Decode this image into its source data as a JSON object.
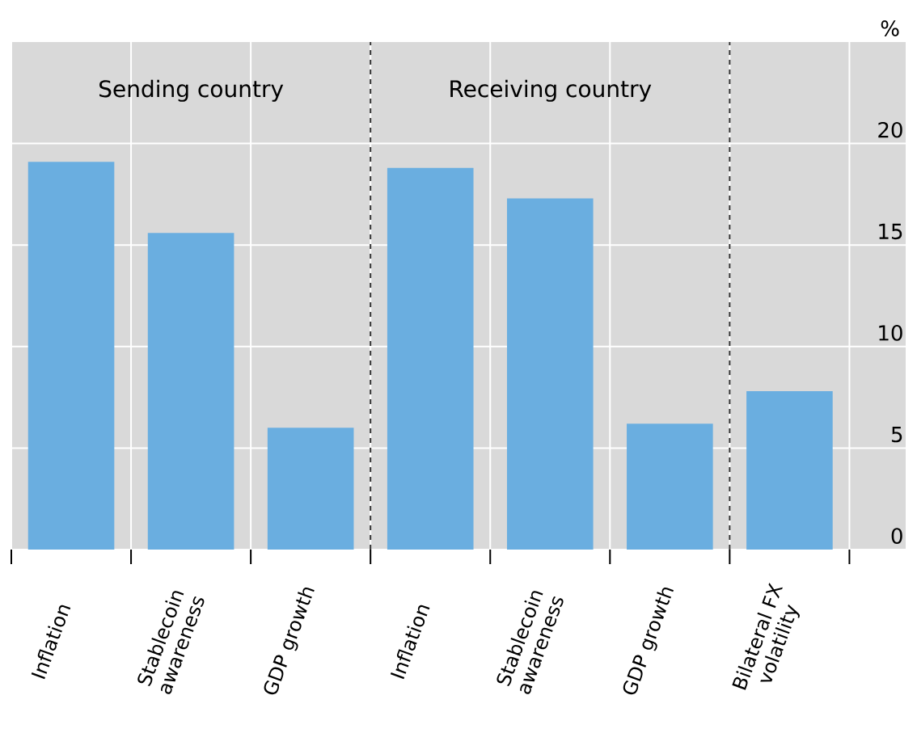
{
  "chart_data": {
    "type": "bar",
    "ylabel": "%",
    "categories": [
      "Inflation",
      "Stablecoin awareness",
      "GDP growth",
      "Inflation",
      "Stablecoin awareness",
      "GDP growth",
      "Bilateral FX volatility"
    ],
    "values": [
      19.1,
      15.6,
      6.0,
      18.8,
      17.3,
      6.2,
      7.8
    ],
    "color": "#6aaee0",
    "ylim": [
      0,
      25
    ],
    "yticks": [
      0,
      5,
      10,
      15,
      20
    ],
    "grid": true,
    "annotations": [
      "Sending country",
      "Receiving country"
    ]
  }
}
